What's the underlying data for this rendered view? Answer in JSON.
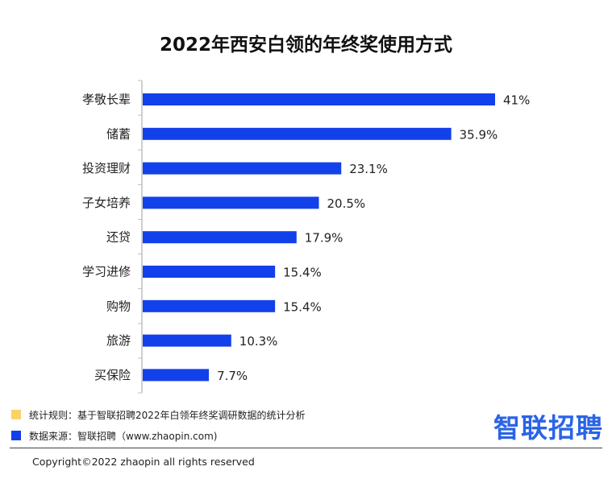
{
  "chart_data": {
    "type": "bar",
    "orientation": "horizontal",
    "title": "2022年西安白领的年终奖使用方式",
    "categories": [
      "孝敬长辈",
      "储蓄",
      "投资理财",
      "子女培养",
      "还贷",
      "学习进修",
      "购物",
      "旅游",
      "买保险"
    ],
    "values": [
      41,
      35.9,
      23.1,
      20.5,
      17.9,
      15.4,
      15.4,
      10.3,
      7.7
    ],
    "value_labels": [
      "41%",
      "35.9%",
      "23.1%",
      "20.5%",
      "17.9%",
      "15.4%",
      "15.4%",
      "10.3%",
      "7.7%"
    ],
    "xlim": [
      0,
      41
    ],
    "bar_color": "#1240ea",
    "grid": false
  },
  "notes": {
    "rule_text": "统计规则：基于智联招聘2022年白领年终奖调研数据的统计分析",
    "source_text": "数据来源：智联招聘（www.zhaopin.com)",
    "rule_color": "#f9d36a",
    "source_color": "#1240ea"
  },
  "brand": "智联招聘",
  "brand_color": "#2a64e6",
  "copyright": "Copyright©2022 zhaopin all rights reserved"
}
